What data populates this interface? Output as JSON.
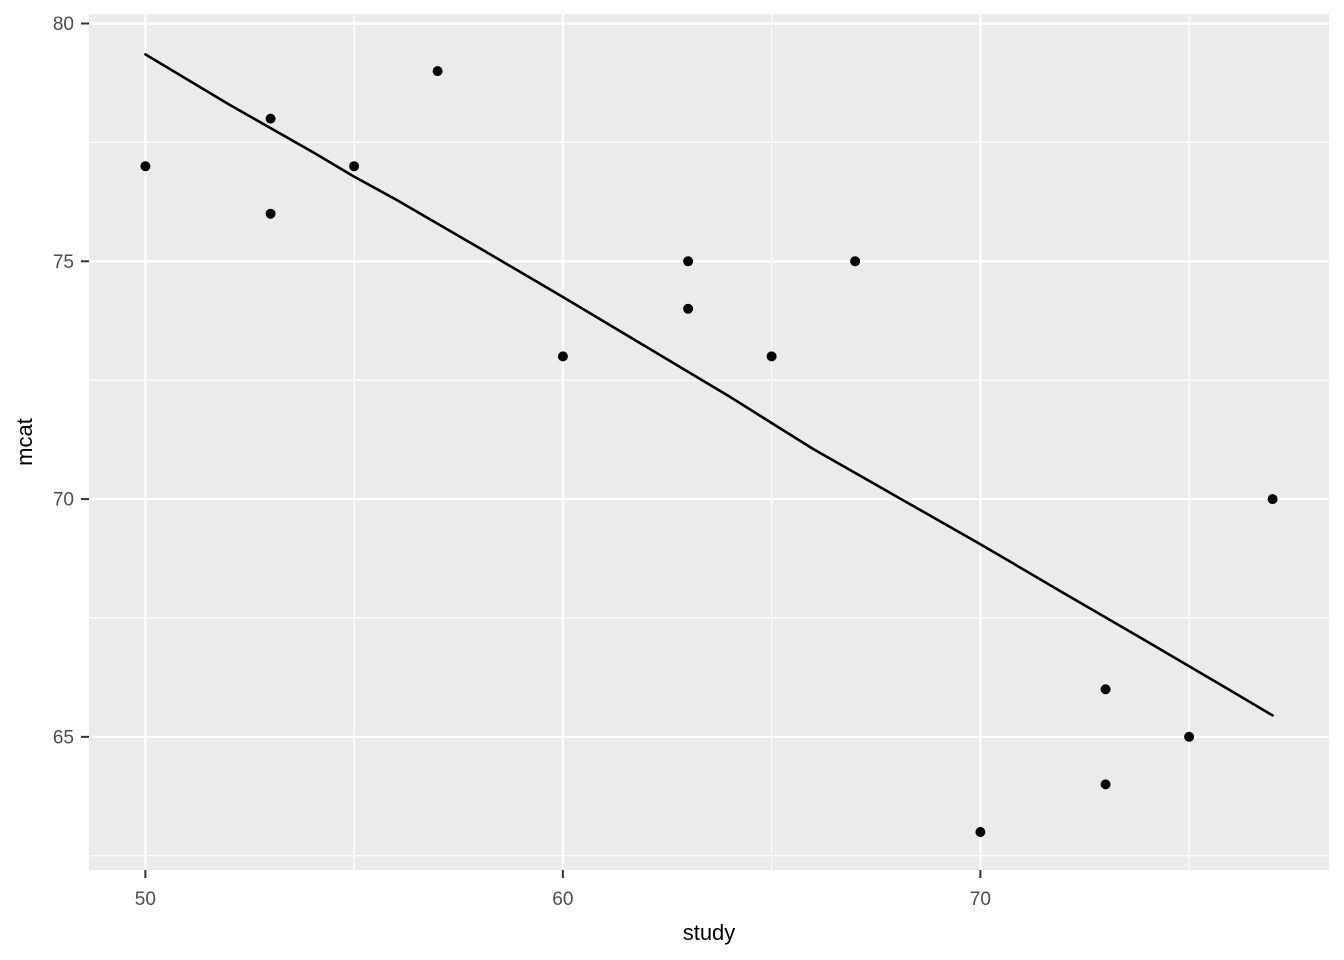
{
  "chart_data": {
    "type": "scatter",
    "title": "",
    "xlabel": "study",
    "ylabel": "mcat",
    "xlim": [
      48.65,
      78.35
    ],
    "ylim": [
      62.2,
      80.2
    ],
    "grid": "on",
    "legend": "none",
    "x_major_ticks": [
      {
        "value": 50,
        "label": "50"
      },
      {
        "value": 60,
        "label": "60"
      },
      {
        "value": 70,
        "label": "70"
      }
    ],
    "x_minor_ticks": [
      55,
      65,
      75
    ],
    "y_major_ticks": [
      {
        "value": 65,
        "label": "65"
      },
      {
        "value": 70,
        "label": "70"
      },
      {
        "value": 75,
        "label": "75"
      },
      {
        "value": 80,
        "label": "80"
      }
    ],
    "y_minor_ticks": [
      62.5,
      67.5,
      72.5,
      77.5
    ],
    "points": [
      [
        50,
        77
      ],
      [
        53,
        78
      ],
      [
        53,
        76
      ],
      [
        55,
        77
      ],
      [
        57,
        79
      ],
      [
        60,
        73
      ],
      [
        63,
        75
      ],
      [
        63,
        74
      ],
      [
        65,
        73
      ],
      [
        67,
        75
      ],
      [
        70,
        63
      ],
      [
        73,
        66
      ],
      [
        73,
        64
      ],
      [
        75,
        65
      ],
      [
        77,
        70
      ]
    ],
    "smooth_line": [
      [
        50,
        79.35
      ],
      [
        52,
        78.3
      ],
      [
        54,
        77.3
      ],
      [
        55,
        76.78
      ],
      [
        56,
        76.3
      ],
      [
        58,
        75.28
      ],
      [
        60,
        74.25
      ],
      [
        62,
        73.2
      ],
      [
        64,
        72.15
      ],
      [
        65,
        71.6
      ],
      [
        66,
        71.05
      ],
      [
        68,
        70.05
      ],
      [
        70,
        69.05
      ],
      [
        72,
        68.02
      ],
      [
        74,
        67.0
      ],
      [
        76,
        65.97
      ],
      [
        77,
        65.45
      ]
    ],
    "colors": {
      "figure_background": "#FFFFFF",
      "panel_background": "#EBEBEB",
      "grid_major": "#FFFFFF",
      "grid_minor": "#FFFFFF",
      "point": "#000000",
      "line": "#000000",
      "tick_mark": "#333333",
      "tick_label": "#4D4D4D",
      "axis_title": "#000000"
    }
  }
}
